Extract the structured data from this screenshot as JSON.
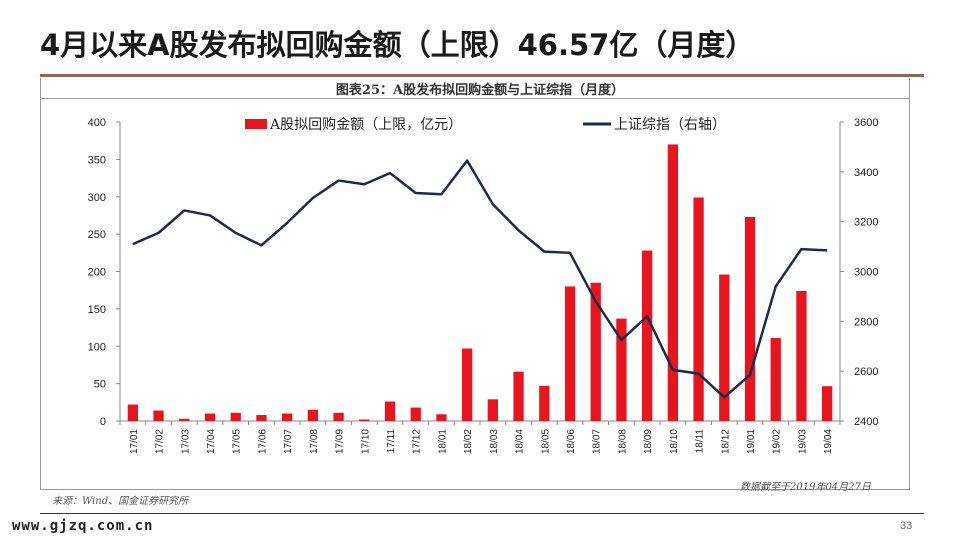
{
  "slide": {
    "title": "4月以来A股发布拟回购金额（上限）46.57亿（月度）",
    "chart_caption": "图表25：A股发布拟回购金额与上证综指（月度）",
    "source": "来源：Wind、国金证券研究所",
    "data_cutoff": "数据截至于2019年04月27日",
    "watermark": "www.gjzq.com.cn",
    "page_number": "33"
  },
  "colors": {
    "bar": "#e8141e",
    "line": "#1b2a4e",
    "title_rule": "#8c6a4f",
    "bottom_rule": "#b00000"
  },
  "chart_data": {
    "type": "bar",
    "categories": [
      "17/01",
      "17/02",
      "17/03",
      "17/04",
      "17/05",
      "17/06",
      "17/07",
      "17/08",
      "17/09",
      "17/10",
      "17/11",
      "17/12",
      "18/01",
      "18/02",
      "18/03",
      "18/04",
      "18/05",
      "18/06",
      "18/07",
      "18/08",
      "18/09",
      "18/10",
      "18/11",
      "18/12",
      "19/01",
      "19/02",
      "19/03",
      "19/04"
    ],
    "series": [
      {
        "name": "A股拟回购金额（上限，亿元）",
        "type": "bar",
        "axis": "left",
        "values": [
          22,
          14,
          3,
          10,
          11,
          8,
          10,
          15,
          11,
          2,
          26,
          18,
          9,
          97,
          29,
          66,
          47,
          180,
          185,
          137,
          228,
          370,
          299,
          196,
          273,
          111,
          174,
          46.57
        ]
      },
      {
        "name": "上证综指（右轴）",
        "type": "line",
        "axis": "right",
        "values": [
          3110,
          3155,
          3245,
          3225,
          3155,
          3105,
          3195,
          3295,
          3365,
          3350,
          3395,
          3315,
          3310,
          3445,
          3270,
          3165,
          3080,
          3075,
          2880,
          2725,
          2820,
          2605,
          2590,
          2495,
          2585,
          2940,
          3090,
          3085
        ]
      }
    ],
    "y_left": {
      "min": 0,
      "max": 400,
      "ticks": [
        0,
        50,
        100,
        150,
        200,
        250,
        300,
        350,
        400
      ]
    },
    "y_right": {
      "min": 2400,
      "max": 3600,
      "ticks": [
        2400,
        2600,
        2800,
        3000,
        3200,
        3400,
        3600
      ]
    },
    "legend_placement": "top",
    "grid": false
  }
}
